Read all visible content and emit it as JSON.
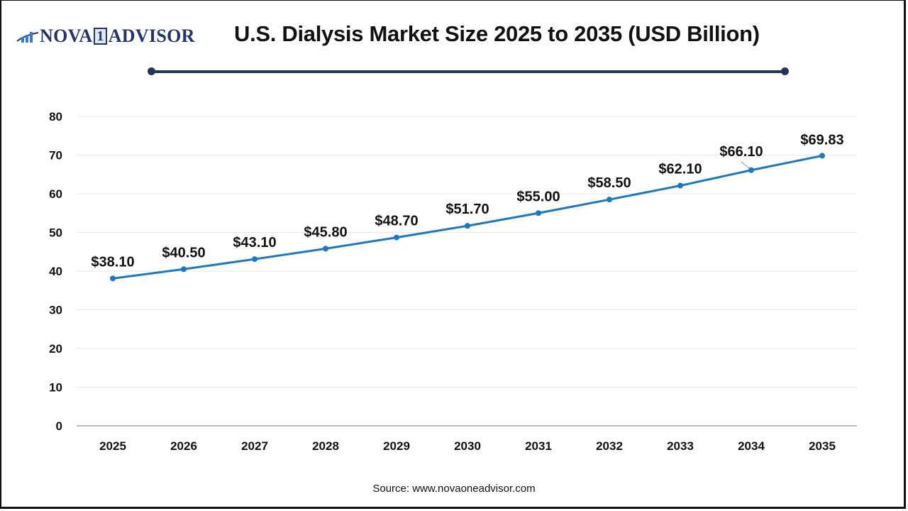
{
  "header": {
    "logo": {
      "part1": "NOVA",
      "part2": "1",
      "part3": "ADVISOR"
    },
    "title": "U.S. Dialysis Market Size 2025 to 2035 (USD Billion)"
  },
  "footer": {
    "source": "Source: www.novaoneadvisor.com"
  },
  "colors": {
    "line": "#1f77c0",
    "title_rule": "#24345a",
    "grid": "#e8e8e8",
    "axis": "#bdbdbd",
    "logo": "#24346b"
  },
  "chart_data": {
    "type": "line",
    "title": "U.S. Dialysis Market Size 2025 to 2035 (USD Billion)",
    "xlabel": "",
    "ylabel": "",
    "categories": [
      "2025",
      "2026",
      "2027",
      "2028",
      "2029",
      "2030",
      "2031",
      "2032",
      "2033",
      "2034",
      "2035"
    ],
    "series": [
      {
        "name": "U.S. Dialysis Market Size (USD Billion)",
        "values": [
          38.1,
          40.5,
          43.1,
          45.8,
          48.7,
          51.7,
          55.0,
          58.5,
          62.1,
          66.1,
          69.83
        ]
      }
    ],
    "data_labels": [
      "$38.10",
      "$40.50",
      "$43.10",
      "$45.80",
      "$48.70",
      "$51.70",
      "$55.00",
      "$58.50",
      "$62.10",
      "$66.10",
      "$69.83"
    ],
    "yticks": [
      0,
      10,
      20,
      30,
      40,
      50,
      60,
      70,
      80
    ],
    "ylim": [
      0,
      80
    ],
    "grid": true,
    "legend": "none"
  }
}
